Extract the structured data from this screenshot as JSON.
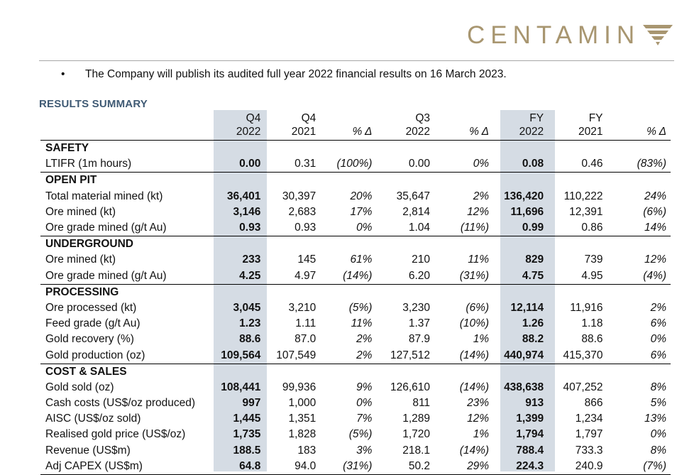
{
  "brand": {
    "name": "CENTAMIN",
    "color": "#a89670",
    "logo_icon": "centamin-chevron-icon"
  },
  "note": {
    "bullet": "•",
    "text": "The Company will publish its audited full year 2022 financial results on 16 March 2023."
  },
  "section_title": "RESULTS SUMMARY",
  "accent": {
    "title_color": "#3f5a74",
    "highlight_band": "#d5dce4"
  },
  "table": {
    "headers": [
      {
        "top": "Q4",
        "bottom": "2022",
        "bold": true
      },
      {
        "top": "Q4",
        "bottom": "2021",
        "bold": false
      },
      {
        "top": "",
        "bottom": "% Δ",
        "bold": false
      },
      {
        "top": "Q3",
        "bottom": "2022",
        "bold": false
      },
      {
        "top": "",
        "bottom": "% Δ",
        "bold": false
      },
      {
        "top": "FY",
        "bottom": "2022",
        "bold": true
      },
      {
        "top": "FY",
        "bottom": "2021",
        "bold": false
      },
      {
        "top": "",
        "bottom": "% Δ",
        "bold": false
      }
    ],
    "sections": [
      {
        "title": "SAFETY",
        "rows": [
          {
            "label": "LTIFR (1m hours)",
            "values": [
              "0.00",
              "0.31",
              "(100%)",
              "0.00",
              "0%",
              "0.08",
              "0.46",
              "(83%)"
            ]
          }
        ]
      },
      {
        "title": "OPEN PIT",
        "rows": [
          {
            "label": "Total material mined (kt)",
            "values": [
              "36,401",
              "30,397",
              "20%",
              "35,647",
              "2%",
              "136,420",
              "110,222",
              "24%"
            ]
          },
          {
            "label": "Ore mined (kt)",
            "values": [
              "3,146",
              "2,683",
              "17%",
              "2,814",
              "12%",
              "11,696",
              "12,391",
              "(6%)"
            ]
          },
          {
            "label": "Ore grade mined (g/t Au)",
            "values": [
              "0.93",
              "0.93",
              "0%",
              "1.04",
              "(11%)",
              "0.99",
              "0.86",
              "14%"
            ]
          }
        ]
      },
      {
        "title": "UNDERGROUND",
        "rows": [
          {
            "label": "Ore mined (kt)",
            "values": [
              "233",
              "145",
              "61%",
              "210",
              "11%",
              "829",
              "739",
              "12%"
            ]
          },
          {
            "label": "Ore grade mined (g/t Au)",
            "values": [
              "4.25",
              "4.97",
              "(14%)",
              "6.20",
              "(31%)",
              "4.75",
              "4.95",
              "(4%)"
            ]
          }
        ]
      },
      {
        "title": "PROCESSING",
        "rows": [
          {
            "label": "Ore processed (kt)",
            "values": [
              "3,045",
              "3,210",
              "(5%)",
              "3,230",
              "(6%)",
              "12,114",
              "11,916",
              "2%"
            ]
          },
          {
            "label": "Feed grade (g/t Au)",
            "values": [
              "1.23",
              "1.11",
              "11%",
              "1.37",
              "(10%)",
              "1.26",
              "1.18",
              "6%"
            ]
          },
          {
            "label": "Gold recovery (%)",
            "values": [
              "88.6",
              "87.0",
              "2%",
              "87.9",
              "1%",
              "88.2",
              "88.6",
              "0%"
            ]
          },
          {
            "label": "Gold production (oz)",
            "values": [
              "109,564",
              "107,549",
              "2%",
              "127,512",
              "(14%)",
              "440,974",
              "415,370",
              "6%"
            ]
          }
        ]
      },
      {
        "title": "COST & SALES",
        "rows": [
          {
            "label": "Gold sold (oz)",
            "values": [
              "108,441",
              "99,936",
              "9%",
              "126,610",
              "(14%)",
              "438,638",
              "407,252",
              "8%"
            ]
          },
          {
            "label": "Cash costs (US$/oz produced)",
            "values": [
              "997",
              "1,000",
              "0%",
              "811",
              "23%",
              "913",
              "866",
              "5%"
            ]
          },
          {
            "label": "AISC (US$/oz sold)",
            "values": [
              "1,445",
              "1,351",
              "7%",
              "1,289",
              "12%",
              "1,399",
              "1,234",
              "13%"
            ]
          },
          {
            "label": "Realised gold price (US$/oz)",
            "values": [
              "1,735",
              "1,828",
              "(5%)",
              "1,720",
              "1%",
              "1,794",
              "1,797",
              "0%"
            ]
          },
          {
            "label": "Revenue (US$m)",
            "values": [
              "188.5",
              "183",
              "3%",
              "218.1",
              "(14%)",
              "788.4",
              "733.3",
              "8%"
            ]
          },
          {
            "label": "Adj CAPEX (US$m)",
            "values": [
              "64.8",
              "94.0",
              "(31%)",
              "50.2",
              "29%",
              "224.3",
              "240.9",
              "(7%)"
            ]
          }
        ]
      }
    ]
  }
}
